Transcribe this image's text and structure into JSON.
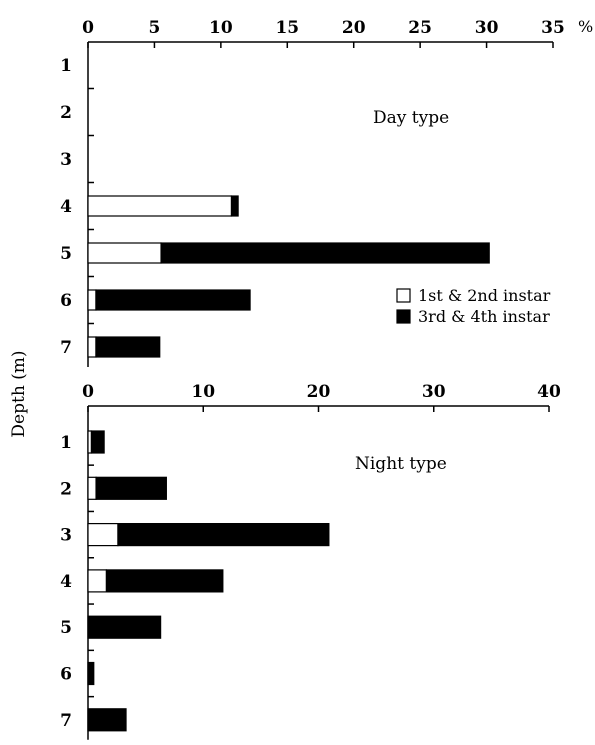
{
  "chart_data": [
    {
      "type": "bar",
      "orientation": "horizontal",
      "stacked": true,
      "title": "Day type",
      "ylabel": "Depth (m)",
      "x_unit": "%",
      "xlim": [
        0,
        35
      ],
      "x_ticks": [
        "0",
        "5",
        "10",
        "15",
        "20",
        "25",
        "30",
        "35"
      ],
      "categories": [
        "1",
        "2",
        "3",
        "4",
        "5",
        "6",
        "7"
      ],
      "series": [
        {
          "name": "1st & 2nd instar",
          "color": "#ffffff",
          "values": [
            0,
            0,
            0,
            10.8,
            5.5,
            0.6,
            0.6
          ]
        },
        {
          "name": "3rd & 4th instar",
          "color": "#000000",
          "values": [
            0,
            0,
            0,
            0.5,
            24.7,
            11.6,
            4.8
          ]
        }
      ],
      "grid": false,
      "legend": {
        "placement": "right",
        "entries": [
          "1st & 2nd instar",
          "3rd & 4th instar"
        ]
      }
    },
    {
      "type": "bar",
      "orientation": "horizontal",
      "stacked": true,
      "title": "Night type",
      "ylabel": "Depth (m)",
      "xlim": [
        0,
        40
      ],
      "x_ticks": [
        "0",
        "10",
        "20",
        "30",
        "40"
      ],
      "categories": [
        "1",
        "2",
        "3",
        "4",
        "5",
        "6",
        "7"
      ],
      "series": [
        {
          "name": "1st & 2nd instar",
          "color": "#ffffff",
          "values": [
            0.3,
            0.7,
            2.6,
            1.6,
            0,
            0,
            0
          ]
        },
        {
          "name": "3rd & 4th instar",
          "color": "#000000",
          "values": [
            1.1,
            6.1,
            18.3,
            10.1,
            6.3,
            0.5,
            3.3
          ]
        }
      ],
      "grid": false
    }
  ]
}
